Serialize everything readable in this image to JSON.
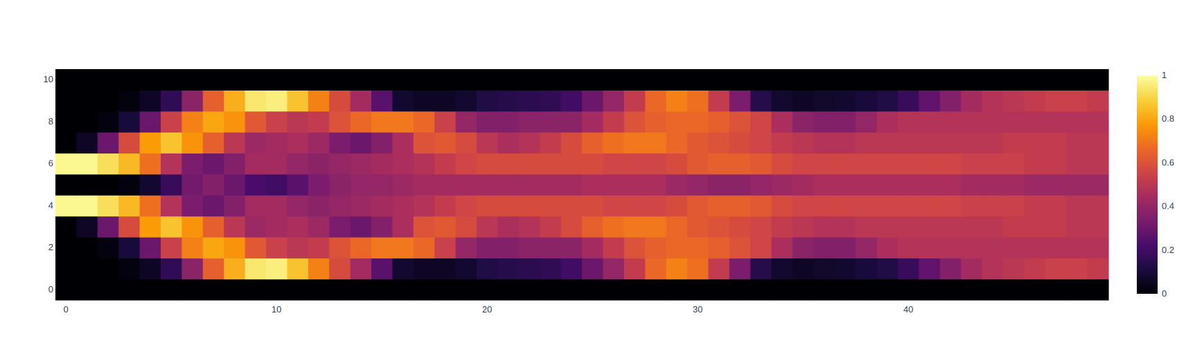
{
  "chart_data": {
    "type": "heatmap",
    "title": "",
    "xlabel": "",
    "ylabel": "",
    "x": {
      "min": 0,
      "max": 49,
      "ticks": [
        0,
        10,
        20,
        30,
        40
      ]
    },
    "y": {
      "min": 0,
      "max": 10,
      "ticks": [
        0,
        2,
        4,
        6,
        8,
        10
      ]
    },
    "colorscale": {
      "name": "Inferno",
      "range": [
        0,
        1
      ],
      "ticks": [
        0,
        0.2,
        0.4,
        0.6,
        0.8,
        1
      ],
      "stops": [
        [
          0.0,
          "#000004"
        ],
        [
          0.111,
          "#1b0c41"
        ],
        [
          0.222,
          "#4a0c6b"
        ],
        [
          0.333,
          "#781c6d"
        ],
        [
          0.444,
          "#a52c60"
        ],
        [
          0.556,
          "#cf4446"
        ],
        [
          0.667,
          "#ed6925"
        ],
        [
          0.778,
          "#fb9b06"
        ],
        [
          0.889,
          "#f7d13d"
        ],
        [
          1.0,
          "#fcffa4"
        ]
      ]
    },
    "z": [
      [
        0,
        0,
        0,
        0,
        0,
        0,
        0,
        0,
        0,
        0,
        0,
        0,
        0,
        0,
        0,
        0,
        0,
        0,
        0,
        0,
        0,
        0,
        0,
        0,
        0,
        0,
        0,
        0,
        0,
        0,
        0,
        0,
        0,
        0,
        0,
        0,
        0,
        0,
        0,
        0,
        0,
        0,
        0,
        0,
        0,
        0,
        0,
        0,
        0,
        0
      ],
      [
        0,
        0,
        0,
        0.02,
        0.06,
        0.16,
        0.38,
        0.64,
        0.82,
        0.94,
        0.96,
        0.86,
        0.72,
        0.58,
        0.44,
        0.26,
        0.08,
        0.06,
        0.06,
        0.08,
        0.12,
        0.14,
        0.15,
        0.16,
        0.2,
        0.3,
        0.4,
        0.52,
        0.66,
        0.72,
        0.68,
        0.52,
        0.34,
        0.14,
        0.08,
        0.06,
        0.07,
        0.08,
        0.1,
        0.12,
        0.18,
        0.28,
        0.36,
        0.44,
        0.48,
        0.5,
        0.52,
        0.54,
        0.54,
        0.52
      ],
      [
        0,
        0,
        0.02,
        0.1,
        0.3,
        0.54,
        0.72,
        0.8,
        0.76,
        0.62,
        0.54,
        0.5,
        0.52,
        0.6,
        0.66,
        0.7,
        0.7,
        0.66,
        0.54,
        0.4,
        0.36,
        0.36,
        0.38,
        0.38,
        0.38,
        0.44,
        0.52,
        0.6,
        0.64,
        0.66,
        0.66,
        0.64,
        0.6,
        0.56,
        0.46,
        0.38,
        0.36,
        0.36,
        0.4,
        0.46,
        0.48,
        0.48,
        0.48,
        0.48,
        0.48,
        0.48,
        0.48,
        0.48,
        0.48,
        0.48
      ],
      [
        0,
        0.06,
        0.3,
        0.58,
        0.78,
        0.86,
        0.76,
        0.64,
        0.5,
        0.42,
        0.44,
        0.46,
        0.42,
        0.34,
        0.3,
        0.36,
        0.46,
        0.6,
        0.62,
        0.58,
        0.5,
        0.46,
        0.48,
        0.52,
        0.58,
        0.64,
        0.68,
        0.7,
        0.7,
        0.66,
        0.62,
        0.6,
        0.58,
        0.56,
        0.52,
        0.5,
        0.48,
        0.48,
        0.5,
        0.5,
        0.5,
        0.5,
        0.5,
        0.5,
        0.5,
        0.52,
        0.52,
        0.52,
        0.5,
        0.5
      ],
      [
        0.98,
        0.98,
        0.92,
        0.84,
        0.68,
        0.48,
        0.34,
        0.3,
        0.36,
        0.44,
        0.44,
        0.4,
        0.38,
        0.4,
        0.42,
        0.44,
        0.46,
        0.48,
        0.52,
        0.56,
        0.58,
        0.58,
        0.58,
        0.58,
        0.58,
        0.58,
        0.56,
        0.56,
        0.56,
        0.58,
        0.62,
        0.64,
        0.64,
        0.62,
        0.58,
        0.56,
        0.56,
        0.56,
        0.56,
        0.56,
        0.56,
        0.56,
        0.56,
        0.54,
        0.54,
        0.54,
        0.52,
        0.52,
        0.5,
        0.5
      ],
      [
        0,
        0,
        0,
        0.02,
        0.08,
        0.18,
        0.32,
        0.36,
        0.3,
        0.22,
        0.2,
        0.26,
        0.34,
        0.38,
        0.4,
        0.4,
        0.42,
        0.44,
        0.44,
        0.44,
        0.44,
        0.44,
        0.44,
        0.44,
        0.44,
        0.46,
        0.46,
        0.46,
        0.46,
        0.42,
        0.4,
        0.38,
        0.38,
        0.4,
        0.42,
        0.44,
        0.46,
        0.46,
        0.46,
        0.46,
        0.46,
        0.46,
        0.46,
        0.44,
        0.44,
        0.44,
        0.42,
        0.42,
        0.42,
        0.42
      ],
      [
        0.98,
        0.98,
        0.92,
        0.84,
        0.68,
        0.48,
        0.34,
        0.3,
        0.36,
        0.44,
        0.44,
        0.4,
        0.38,
        0.4,
        0.42,
        0.44,
        0.46,
        0.48,
        0.52,
        0.56,
        0.58,
        0.58,
        0.58,
        0.58,
        0.58,
        0.58,
        0.56,
        0.56,
        0.56,
        0.58,
        0.62,
        0.64,
        0.64,
        0.62,
        0.58,
        0.56,
        0.56,
        0.56,
        0.56,
        0.56,
        0.56,
        0.56,
        0.56,
        0.54,
        0.54,
        0.54,
        0.52,
        0.52,
        0.5,
        0.5
      ],
      [
        0,
        0.06,
        0.3,
        0.58,
        0.78,
        0.86,
        0.76,
        0.64,
        0.5,
        0.42,
        0.44,
        0.46,
        0.42,
        0.34,
        0.3,
        0.36,
        0.46,
        0.6,
        0.62,
        0.58,
        0.5,
        0.46,
        0.48,
        0.52,
        0.58,
        0.64,
        0.68,
        0.7,
        0.7,
        0.66,
        0.62,
        0.6,
        0.58,
        0.56,
        0.52,
        0.5,
        0.48,
        0.48,
        0.5,
        0.5,
        0.5,
        0.5,
        0.5,
        0.5,
        0.5,
        0.52,
        0.52,
        0.52,
        0.5,
        0.5
      ],
      [
        0,
        0,
        0.02,
        0.1,
        0.3,
        0.54,
        0.72,
        0.8,
        0.76,
        0.62,
        0.54,
        0.5,
        0.52,
        0.6,
        0.66,
        0.7,
        0.7,
        0.66,
        0.54,
        0.4,
        0.36,
        0.36,
        0.38,
        0.38,
        0.38,
        0.44,
        0.52,
        0.6,
        0.64,
        0.66,
        0.66,
        0.64,
        0.6,
        0.56,
        0.46,
        0.38,
        0.36,
        0.36,
        0.4,
        0.46,
        0.48,
        0.48,
        0.48,
        0.48,
        0.48,
        0.48,
        0.48,
        0.48,
        0.48,
        0.48
      ],
      [
        0,
        0,
        0,
        0.02,
        0.06,
        0.16,
        0.38,
        0.64,
        0.82,
        0.94,
        0.96,
        0.86,
        0.72,
        0.58,
        0.44,
        0.26,
        0.08,
        0.06,
        0.06,
        0.08,
        0.12,
        0.14,
        0.15,
        0.16,
        0.2,
        0.3,
        0.4,
        0.52,
        0.66,
        0.72,
        0.68,
        0.52,
        0.34,
        0.14,
        0.08,
        0.06,
        0.07,
        0.08,
        0.1,
        0.12,
        0.18,
        0.28,
        0.36,
        0.44,
        0.48,
        0.5,
        0.52,
        0.54,
        0.54,
        0.52
      ],
      [
        0,
        0,
        0,
        0,
        0,
        0,
        0,
        0,
        0,
        0,
        0,
        0,
        0,
        0,
        0,
        0,
        0,
        0,
        0,
        0,
        0,
        0,
        0,
        0,
        0,
        0,
        0,
        0,
        0,
        0,
        0,
        0,
        0,
        0,
        0,
        0,
        0,
        0,
        0,
        0,
        0,
        0,
        0,
        0,
        0,
        0,
        0,
        0,
        0,
        0
      ]
    ]
  }
}
